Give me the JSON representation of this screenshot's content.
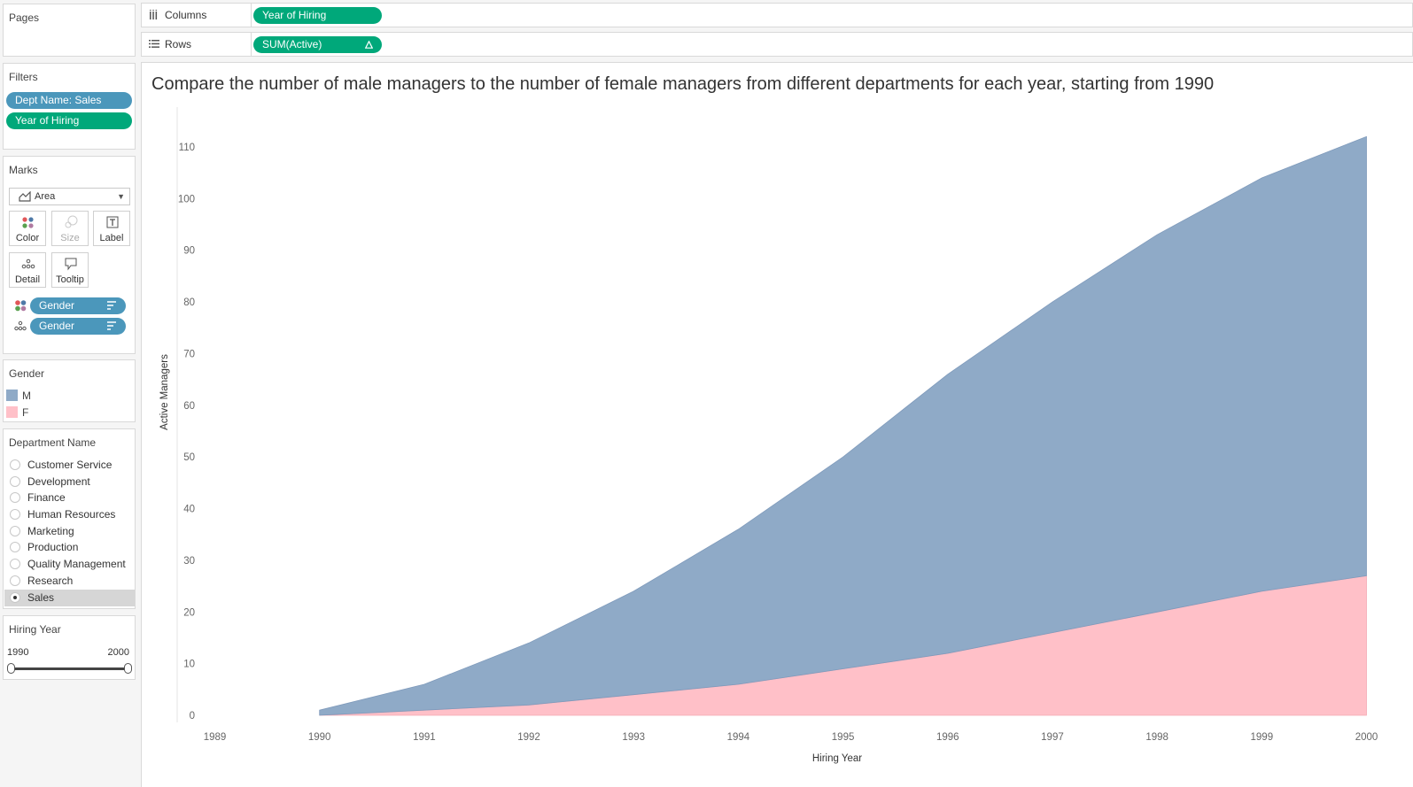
{
  "shelves": {
    "columns_label": "Columns",
    "columns_pill": "Year of Hiring",
    "rows_label": "Rows",
    "rows_pill": "SUM(Active)"
  },
  "pages": {
    "title": "Pages"
  },
  "filters": {
    "title": "Filters",
    "items": [
      "Dept Name: Sales",
      "Year of Hiring"
    ]
  },
  "marks": {
    "title": "Marks",
    "type": "Area",
    "buttons": {
      "color": "Color",
      "size": "Size",
      "label": "Label",
      "detail": "Detail",
      "tooltip": "Tooltip"
    },
    "fields": [
      "Gender",
      "Gender"
    ]
  },
  "legend": {
    "title": "Gender",
    "items": [
      {
        "label": "M",
        "color": "#8faac7"
      },
      {
        "label": "F",
        "color": "#ffc0c8"
      }
    ]
  },
  "department_filter": {
    "title": "Department Name",
    "items": [
      "Customer Service",
      "Development",
      "Finance",
      "Human Resources",
      "Marketing",
      "Production",
      "Quality Management",
      "Research",
      "Sales"
    ],
    "selected": "Sales"
  },
  "hiring_year": {
    "title": "Hiring Year",
    "min": "1990",
    "max": "2000"
  },
  "chart_data": {
    "type": "area",
    "title": "Compare the number of male managers to the number of female managers from different departments for each year, starting from 1990",
    "xlabel": "Hiring Year",
    "ylabel": "Active Managers",
    "x_ticks": [
      "1989",
      "1990",
      "1991",
      "1992",
      "1993",
      "1994",
      "1995",
      "1996",
      "1997",
      "1998",
      "1999",
      "2000"
    ],
    "y_ticks": [
      "0",
      "10",
      "20",
      "30",
      "40",
      "50",
      "60",
      "70",
      "80",
      "90",
      "100",
      "110"
    ],
    "ylim": [
      -1.5,
      117
    ],
    "stacked": true,
    "x": [
      1990,
      1991,
      1992,
      1993,
      1994,
      1995,
      1996,
      1997,
      1998,
      1999,
      2000
    ],
    "series": [
      {
        "name": "F",
        "color": "#ffc0c8",
        "values": [
          0,
          1,
          2,
          4,
          6,
          9,
          12,
          16,
          20,
          24,
          27
        ]
      },
      {
        "name": "M",
        "color": "#8faac7",
        "values": [
          1,
          5,
          12,
          20,
          30,
          41,
          54,
          64,
          73,
          80,
          85
        ]
      }
    ]
  }
}
